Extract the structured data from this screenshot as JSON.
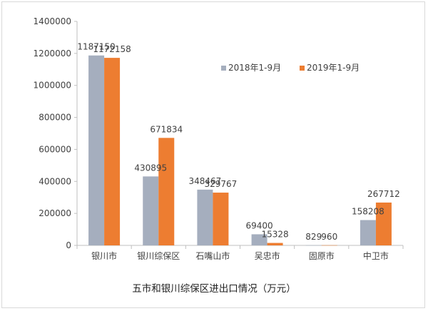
{
  "chart_data": {
    "type": "bar",
    "title": "五市和银川综保区进出口情况（万元）",
    "categories": [
      "银川市",
      "银川综保区",
      "石嘴山市",
      "吴忠市",
      "固原市",
      "中卫市"
    ],
    "series": [
      {
        "name": "2018年1-9月",
        "color": "#a5aebe",
        "values": [
          1187150,
          430895,
          348467,
          69400,
          829,
          158208
        ]
      },
      {
        "name": "2019年1-9月",
        "color": "#ed7d31",
        "values": [
          1172158,
          671834,
          329767,
          15328,
          960,
          267712
        ]
      }
    ],
    "yticks": [
      0,
      200000,
      400000,
      600000,
      800000,
      1000000,
      1200000,
      1400000
    ],
    "ylim": [
      0,
      1400000
    ],
    "grid": false,
    "legend_position": "top-right"
  }
}
